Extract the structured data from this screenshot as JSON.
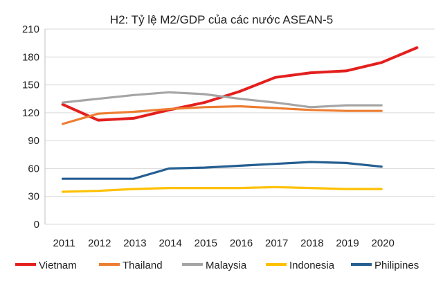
{
  "chart_data": {
    "type": "line",
    "title": "H2: Tỷ lệ M2/GDP của các nước ASEAN-5",
    "xlabel": "",
    "ylabel": "",
    "ylim": [
      0,
      210
    ],
    "yticks": [
      "0",
      "30",
      "60",
      "90",
      "120",
      "150",
      "180",
      "210"
    ],
    "x": [
      "2011",
      "2012",
      "2013",
      "2014",
      "2015",
      "2016",
      "2017",
      "2018",
      "2019",
      "2020",
      "2021"
    ],
    "xtick_labels": [
      "2011",
      "2012",
      "2013",
      "2014",
      "2015",
      "2016",
      "2017",
      "2018",
      "2019",
      "2020"
    ],
    "grid": true,
    "legend_position": "bottom",
    "series": [
      {
        "name": "Vietnam",
        "color": "#e3201e",
        "values": [
          129,
          112,
          114,
          123,
          131,
          143,
          158,
          163,
          165,
          174,
          190
        ]
      },
      {
        "name": "Thailand",
        "color": "#ed7d31",
        "values": [
          108,
          119,
          121,
          124,
          126,
          127,
          125,
          123,
          122,
          122,
          null
        ]
      },
      {
        "name": "Malaysia",
        "color": "#a5a5a5",
        "values": [
          131,
          135,
          139,
          142,
          140,
          135,
          131,
          126,
          128,
          128,
          null
        ]
      },
      {
        "name": "Indonesia",
        "color": "#ffc000",
        "values": [
          35,
          36,
          38,
          39,
          39,
          39,
          40,
          39,
          38,
          38,
          null
        ]
      },
      {
        "name": "Philipines",
        "color": "#255e91",
        "values": [
          49,
          49,
          49,
          60,
          61,
          63,
          65,
          67,
          66,
          62,
          null
        ]
      }
    ]
  }
}
